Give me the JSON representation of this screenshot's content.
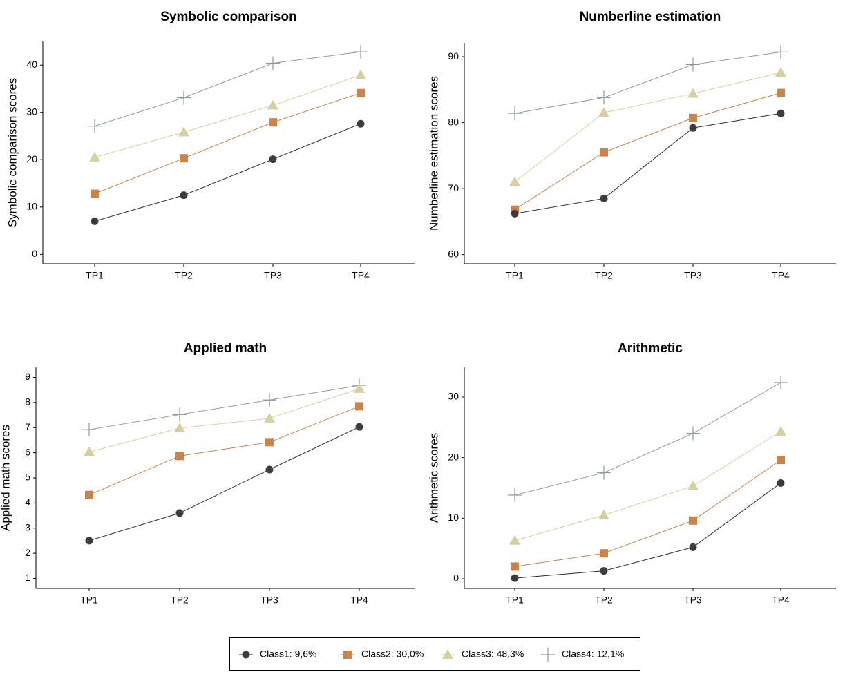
{
  "legend": {
    "placement": "bottom",
    "items": [
      {
        "label": "Class1: 9,6%",
        "marker": "circle",
        "color": "#403a3c"
      },
      {
        "label": "Class2: 30,0%",
        "marker": "square",
        "color": "#c8844a"
      },
      {
        "label": "Class3: 48,3%",
        "marker": "triangle",
        "color": "#d6d0a0"
      },
      {
        "label": "Class4: 12,1%",
        "marker": "plus",
        "color": "#8c9c9c"
      }
    ]
  },
  "chart_data": [
    {
      "type": "line",
      "title": "Symbolic comparison",
      "xlabel": "",
      "ylabel": "Symbolic comparison scores",
      "categories": [
        "TP1",
        "TP2",
        "TP3",
        "TP4"
      ],
      "ylim": [
        -2,
        45
      ],
      "yticks": [
        0,
        10,
        20,
        30,
        40
      ],
      "grid": false,
      "series": [
        {
          "name": "Class1: 9,6%",
          "values": [
            7.0,
            12.5,
            20.1,
            27.6
          ]
        },
        {
          "name": "Class2: 30,0%",
          "values": [
            12.8,
            20.3,
            27.9,
            34.1
          ]
        },
        {
          "name": "Class3: 48,3%",
          "values": [
            20.5,
            25.8,
            31.5,
            37.9
          ]
        },
        {
          "name": "Class4: 12,1%",
          "values": [
            27.1,
            33.1,
            40.4,
            42.8
          ]
        }
      ]
    },
    {
      "type": "line",
      "title": "Numberline estimation",
      "xlabel": "",
      "ylabel": "Numberline estimation scores",
      "categories": [
        "TP1",
        "TP2",
        "TP3",
        "TP4"
      ],
      "ylim": [
        58.6,
        92.1
      ],
      "yticks": [
        60,
        70,
        80,
        90
      ],
      "grid": false,
      "series": [
        {
          "name": "Class1: 9,6%",
          "values": [
            66.2,
            68.5,
            79.2,
            81.4
          ]
        },
        {
          "name": "Class2: 30,0%",
          "values": [
            66.8,
            75.5,
            80.7,
            84.5
          ]
        },
        {
          "name": "Class3: 48,3%",
          "values": [
            71.0,
            81.5,
            84.4,
            87.6
          ]
        },
        {
          "name": "Class4: 12,1%",
          "values": [
            81.4,
            83.8,
            88.8,
            90.7
          ]
        }
      ]
    },
    {
      "type": "line",
      "title": "Applied math",
      "xlabel": "",
      "ylabel": "Applied math scores",
      "categories": [
        "TP1",
        "TP2",
        "TP3",
        "TP4"
      ],
      "ylim": [
        0.6,
        9.4
      ],
      "yticks": [
        1,
        2,
        3,
        4,
        5,
        6,
        7,
        8,
        9
      ],
      "grid": false,
      "series": [
        {
          "name": "Class1: 9,6%",
          "values": [
            2.5,
            3.6,
            5.33,
            7.03
          ]
        },
        {
          "name": "Class2: 30,0%",
          "values": [
            4.32,
            5.87,
            6.42,
            7.85
          ]
        },
        {
          "name": "Class3: 48,3%",
          "values": [
            6.03,
            6.98,
            7.37,
            8.55
          ]
        },
        {
          "name": "Class4: 12,1%",
          "values": [
            6.92,
            7.52,
            8.1,
            8.68
          ]
        }
      ]
    },
    {
      "type": "line",
      "title": "Arithmetic",
      "xlabel": "",
      "ylabel": "Arithmetic scores",
      "categories": [
        "TP1",
        "TP2",
        "TP3",
        "TP4"
      ],
      "ylim": [
        -1.6,
        34.9
      ],
      "yticks": [
        0,
        10,
        20,
        30
      ],
      "grid": false,
      "series": [
        {
          "name": "Class1: 9,6%",
          "values": [
            0.1,
            1.3,
            5.2,
            15.8
          ]
        },
        {
          "name": "Class2: 30,0%",
          "values": [
            2.0,
            4.2,
            9.6,
            19.6
          ]
        },
        {
          "name": "Class3: 48,3%",
          "values": [
            6.3,
            10.5,
            15.3,
            24.3
          ]
        },
        {
          "name": "Class4: 12,1%",
          "values": [
            13.8,
            17.5,
            24.0,
            32.4
          ]
        }
      ]
    }
  ]
}
